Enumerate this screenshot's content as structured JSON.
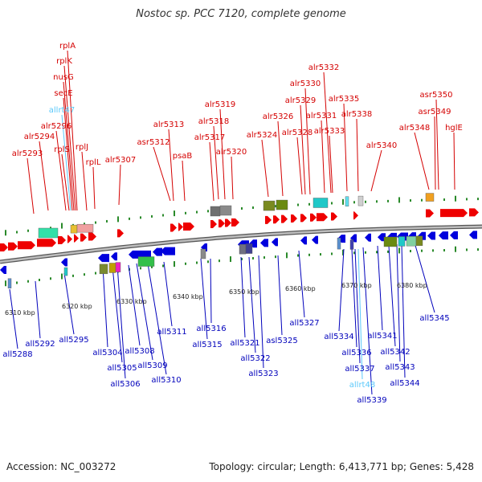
{
  "title": "Nostoc sp. PCC 7120, complete genome",
  "footer": {
    "accession": "Accession: NC_003272",
    "summary": "Topology: circular; Length: 6,413,771 bp; Genes: 5,428"
  },
  "colors": {
    "forward_label": "#d40000",
    "reverse_label": "#0000bb",
    "rna_label": "#5ac8fa",
    "forward_arrow": "#ee0000",
    "reverse_arrow": "#0000dd",
    "tick": "#2a8a2a",
    "backbone": "#8a8a8a"
  },
  "kbp_ticks": [
    "6310 kbp",
    "6320 kbp",
    "6330 kbp",
    "6340 kbp",
    "6350 kbp",
    "6360 kbp",
    "6370 kbp",
    "6380 kbp"
  ],
  "top_genes": [
    "rplA",
    "rplK",
    "nusG",
    "secE",
    "allrt47",
    "alr5296",
    "alr5294",
    "rplS",
    "rplJ",
    "alr5293",
    "rplL",
    "alr5307",
    "asr5312",
    "alr5313",
    "psaB",
    "alr5317",
    "alr5318",
    "alr5319",
    "alr5320",
    "alr5324",
    "alr5326",
    "alr5328",
    "alr5329",
    "alr5330",
    "alr5331",
    "alr5332",
    "alr5333",
    "alr5335",
    "alr5338",
    "alr5340",
    "alr5348",
    "asr5349",
    "asr5350",
    "hglE"
  ],
  "bottom_genes": [
    "all5288",
    "all5292",
    "all5295",
    "all5304",
    "all5305",
    "all5306",
    "all5308",
    "all5309",
    "all5310",
    "all5311",
    "all5315",
    "all5316",
    "all5321",
    "all5322",
    "all5323",
    "asl5325",
    "all5327",
    "all5334",
    "all5336",
    "all5337",
    "allrt48",
    "all5339",
    "all5341",
    "all5342",
    "all5343",
    "all5344",
    "all5345"
  ]
}
